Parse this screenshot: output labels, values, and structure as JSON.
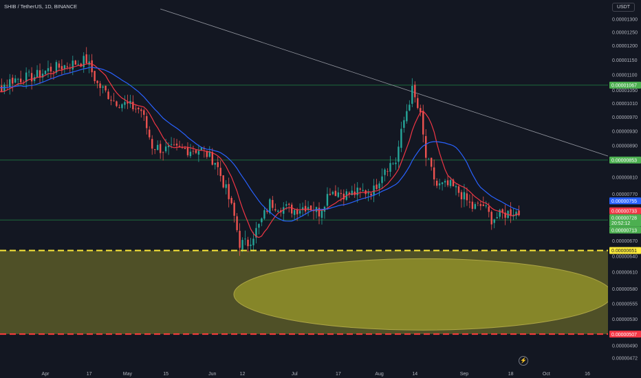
{
  "header": {
    "symbol_title": "SHIB / TetherUS, 1D, BINANCE",
    "currency": "USDT"
  },
  "colors": {
    "background": "#131722",
    "up": "#26a69a",
    "down": "#ef5350",
    "ma_fast": "#f23645",
    "ma_slow": "#2962ff",
    "hline": "#1e6b3c",
    "support": "#ffeb3b",
    "lower_line": "#ff3b3b",
    "zone": "#5a5a28",
    "ellipse": "#8c8c2a",
    "trendline": "#9598a1",
    "tag_green": "#4caf50",
    "tag_red": "#f23645",
    "tag_blue": "#2962ff"
  },
  "chart_data": {
    "type": "candlestick",
    "title": "SHIB / TetherUS, 1D, BINANCE",
    "y_axis": {
      "scale": "log",
      "range": [
        4.72e-06,
        1.34e-05
      ],
      "tick_labels": [
        "0.00001300",
        "0.00001250",
        "0.00001200",
        "0.00001150",
        "0.00001100",
        "0.00001050",
        "0.00001010",
        "0.00000970",
        "0.00000930",
        "0.00000890",
        "0.00000810",
        "0.00000770",
        "0.00000670",
        "0.00000640",
        "0.00000610",
        "0.00000580",
        "0.00000555",
        "0.00000530",
        "0.00000490",
        "0.00000472"
      ]
    },
    "x_axis": {
      "tick_labels": [
        {
          "label": "Apr",
          "date": "2023-04-01"
        },
        {
          "label": "17",
          "date": "2023-04-17"
        },
        {
          "label": "May",
          "date": "2023-05-01"
        },
        {
          "label": "15",
          "date": "2023-05-15"
        },
        {
          "label": "Jun",
          "date": "2023-06-01"
        },
        {
          "label": "12",
          "date": "2023-06-12"
        },
        {
          "label": "Jul",
          "date": "2023-07-01"
        },
        {
          "label": "17",
          "date": "2023-07-17"
        },
        {
          "label": "Aug",
          "date": "2023-08-01"
        },
        {
          "label": "14",
          "date": "2023-08-14"
        },
        {
          "label": "Sep",
          "date": "2023-09-01"
        },
        {
          "label": "18",
          "date": "2023-09-18"
        },
        {
          "label": "Oct",
          "date": "2023-10-01"
        },
        {
          "label": "16",
          "date": "2023-10-16"
        }
      ]
    },
    "price_series_anchors": [
      [
        "2023-03-03",
        1.11e-05
      ],
      [
        "2023-03-10",
        1.03e-05
      ],
      [
        "2023-03-20",
        1.085e-05
      ],
      [
        "2023-03-28",
        1.095e-05
      ],
      [
        "2023-04-03",
        1.12e-05
      ],
      [
        "2023-04-10",
        1.135e-05
      ],
      [
        "2023-04-16",
        1.15e-05
      ],
      [
        "2023-04-20",
        1.07e-05
      ],
      [
        "2023-04-26",
        1.02e-05
      ],
      [
        "2023-05-01",
        1.005e-05
      ],
      [
        "2023-05-06",
        9.9e-06
      ],
      [
        "2023-05-10",
        8.9e-06
      ],
      [
        "2023-05-14",
        8.8e-06
      ],
      [
        "2023-05-20",
        8.8e-06
      ],
      [
        "2023-05-28",
        8.8e-06
      ],
      [
        "2023-06-02",
        8.5e-06
      ],
      [
        "2023-06-06",
        7.8e-06
      ],
      [
        "2023-06-09",
        7.2e-06
      ],
      [
        "2023-06-11",
        6.65e-06
      ],
      [
        "2023-06-14",
        6.65e-06
      ],
      [
        "2023-06-18",
        7e-06
      ],
      [
        "2023-06-22",
        7.5e-06
      ],
      [
        "2023-06-27",
        7.4e-06
      ],
      [
        "2023-07-01",
        7.35e-06
      ],
      [
        "2023-07-06",
        7.45e-06
      ],
      [
        "2023-07-10",
        7.3e-06
      ],
      [
        "2023-07-14",
        7.8e-06
      ],
      [
        "2023-07-20",
        7.7e-06
      ],
      [
        "2023-07-25",
        7.75e-06
      ],
      [
        "2023-07-30",
        7.8e-06
      ],
      [
        "2023-08-03",
        8.35e-06
      ],
      [
        "2023-08-07",
        8.5e-06
      ],
      [
        "2023-08-10",
        9.6e-06
      ],
      [
        "2023-08-13",
        1.05e-05
      ],
      [
        "2023-08-16",
        9.7e-06
      ],
      [
        "2023-08-18",
        8.6e-06
      ],
      [
        "2023-08-22",
        7.9e-06
      ],
      [
        "2023-08-27",
        7.9e-06
      ],
      [
        "2023-08-31",
        7.7e-06
      ],
      [
        "2023-09-04",
        7.4e-06
      ],
      [
        "2023-09-08",
        7.45e-06
      ],
      [
        "2023-09-11",
        7.15e-06
      ],
      [
        "2023-09-15",
        7.25e-06
      ],
      [
        "2023-09-19",
        7.32e-06
      ],
      [
        "2023-09-21",
        7.28e-06
      ]
    ],
    "series": [
      {
        "name": "",
        "values": "SMA fast (red)"
      },
      {
        "name": "",
        "values": "SMA slow (blue)"
      }
    ],
    "horizontal_lines": [
      1.067e-05,
      8.53e-06,
      7.13e-06
    ],
    "support_line": 6.51e-06,
    "lower_line": 5.07e-06,
    "trendline": [
      [
        "2023-05-13",
        1.34e-05
      ],
      [
        "2023-10-28",
        8.53e-06
      ]
    ],
    "price_tags": [
      {
        "value": 1.067e-05,
        "text": "0.00001067",
        "kind": "green"
      },
      {
        "value": 8.53e-06,
        "text": "0.00000853",
        "kind": "green"
      },
      {
        "value": 7.55e-06,
        "text": "0.00000755",
        "kind": "blue"
      },
      {
        "value": 7.33e-06,
        "text": "0.00000733",
        "kind": "red"
      },
      {
        "value": 7.28e-06,
        "text": "0.00000728",
        "kind": "green",
        "sub": "20:52:12"
      },
      {
        "value": 7.13e-06,
        "text": "0.00000713",
        "kind": "green"
      },
      {
        "value": 6.51e-06,
        "text": "0.00000651",
        "kind": "yellow"
      },
      {
        "value": 5.07e-06,
        "text": "0.00000507",
        "kind": "red"
      }
    ]
  }
}
